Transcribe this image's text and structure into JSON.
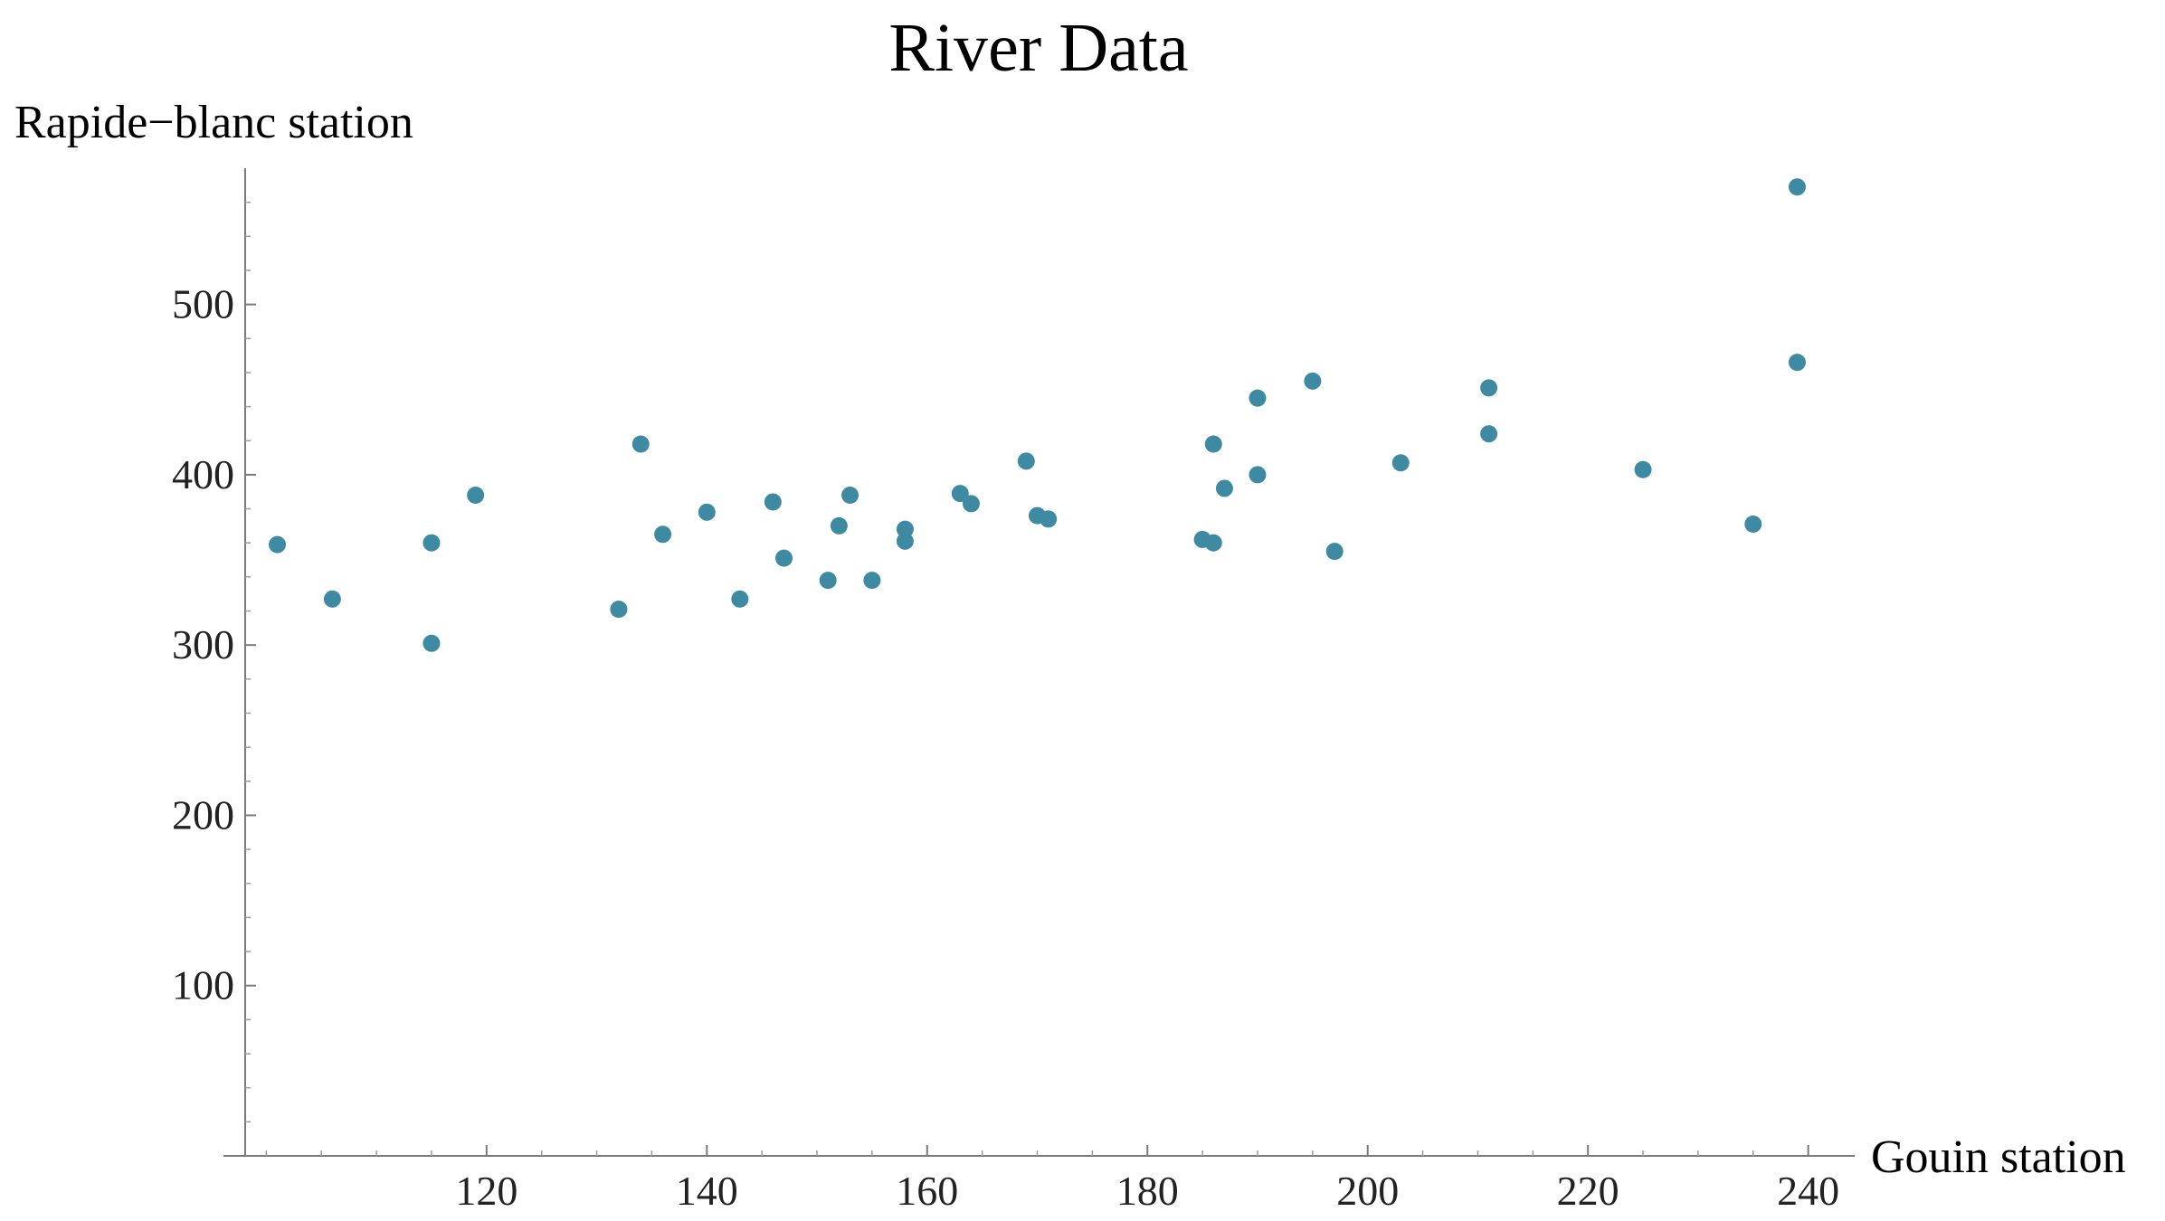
{
  "chart_data": {
    "type": "scatter",
    "title": "River Data",
    "xlabel": "Gouin station",
    "ylabel": "Rapide−blanc station",
    "xlim": [
      98,
      242
    ],
    "ylim": [
      0,
      580
    ],
    "x_ticks": [
      120,
      140,
      160,
      180,
      200,
      220,
      240
    ],
    "y_ticks": [
      100,
      200,
      300,
      400,
      500
    ],
    "x_minor_step": 5,
    "y_minor_step": 20,
    "marker_color": "#3f8aa3",
    "grid": false,
    "legend": "none",
    "points": [
      {
        "x": 101,
        "y": 359
      },
      {
        "x": 106,
        "y": 327
      },
      {
        "x": 115,
        "y": 360
      },
      {
        "x": 115,
        "y": 301
      },
      {
        "x": 119,
        "y": 388
      },
      {
        "x": 132,
        "y": 321
      },
      {
        "x": 134,
        "y": 418
      },
      {
        "x": 136,
        "y": 365
      },
      {
        "x": 140,
        "y": 378
      },
      {
        "x": 143,
        "y": 327
      },
      {
        "x": 146,
        "y": 384
      },
      {
        "x": 147,
        "y": 351
      },
      {
        "x": 151,
        "y": 338
      },
      {
        "x": 152,
        "y": 370
      },
      {
        "x": 153,
        "y": 388
      },
      {
        "x": 155,
        "y": 338
      },
      {
        "x": 158,
        "y": 368
      },
      {
        "x": 158,
        "y": 361
      },
      {
        "x": 163,
        "y": 389
      },
      {
        "x": 164,
        "y": 383
      },
      {
        "x": 169,
        "y": 408
      },
      {
        "x": 170,
        "y": 376
      },
      {
        "x": 171,
        "y": 374
      },
      {
        "x": 185,
        "y": 362
      },
      {
        "x": 186,
        "y": 418
      },
      {
        "x": 186,
        "y": 360
      },
      {
        "x": 187,
        "y": 392
      },
      {
        "x": 190,
        "y": 445
      },
      {
        "x": 190,
        "y": 400
      },
      {
        "x": 195,
        "y": 455
      },
      {
        "x": 197,
        "y": 355
      },
      {
        "x": 203,
        "y": 407
      },
      {
        "x": 211,
        "y": 451
      },
      {
        "x": 211,
        "y": 424
      },
      {
        "x": 225,
        "y": 403
      },
      {
        "x": 235,
        "y": 371
      },
      {
        "x": 239,
        "y": 569
      },
      {
        "x": 239,
        "y": 466
      }
    ]
  }
}
